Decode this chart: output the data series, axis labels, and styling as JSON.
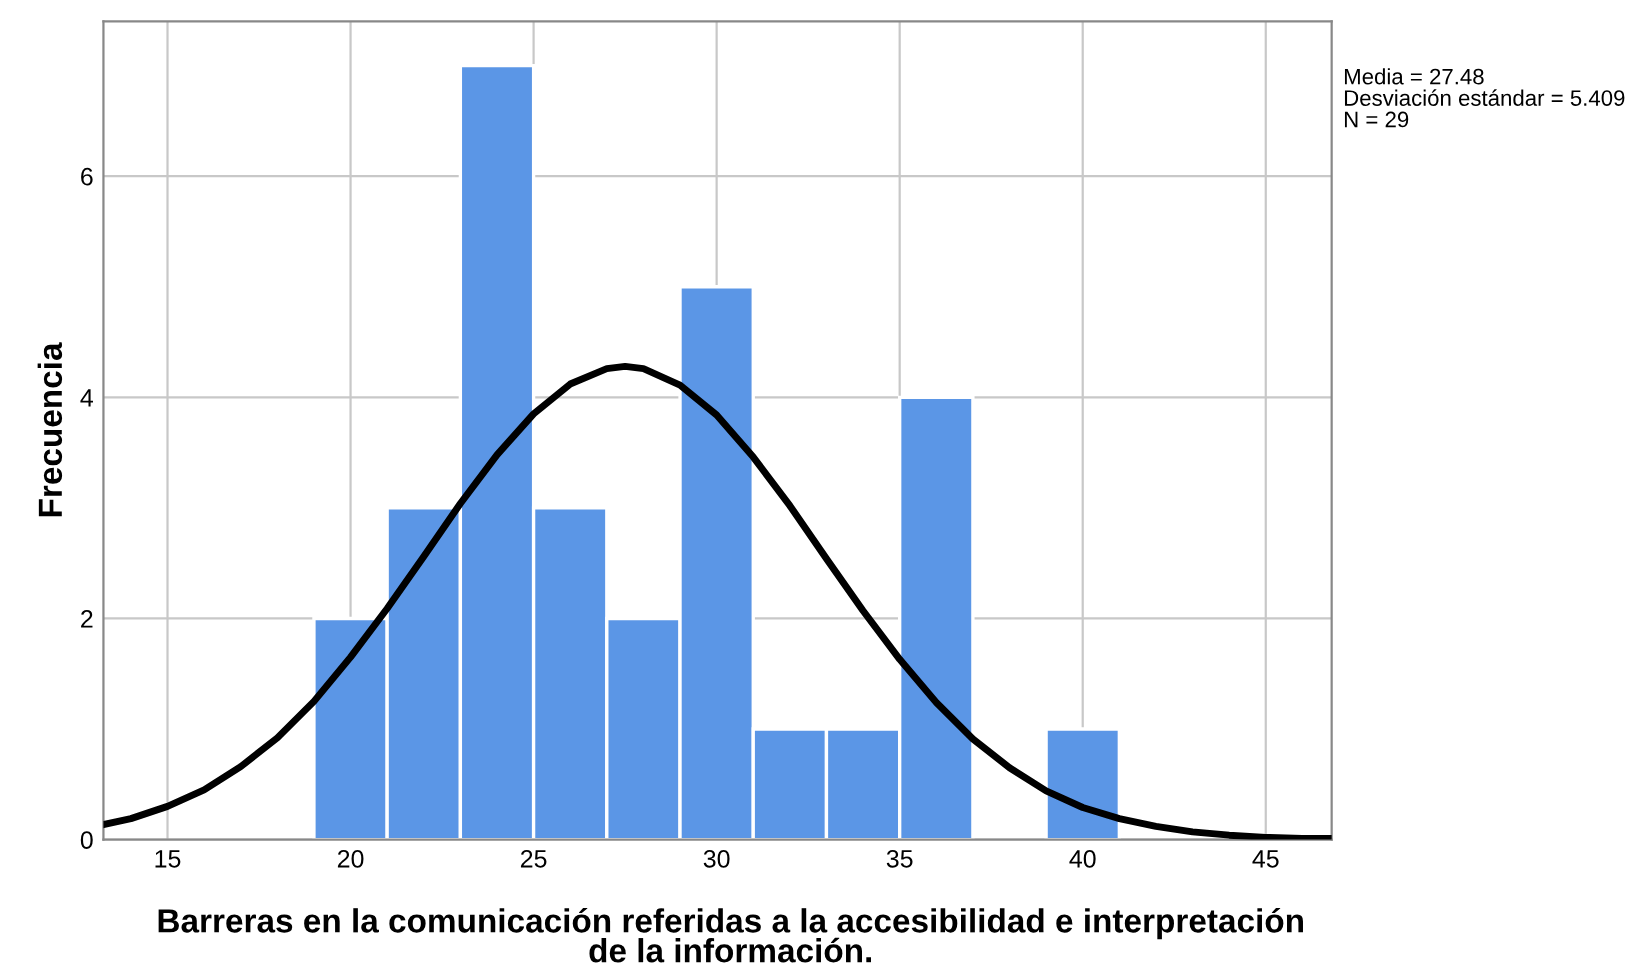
{
  "chart_data": {
    "type": "histogram",
    "xlabel": "Barreras en la comunicación referidas a la accesibilidad e interpretación\nde la información.",
    "ylabel": "Frecuencia",
    "bins": [
      19,
      21,
      23,
      25,
      27,
      29,
      31,
      33,
      35,
      37,
      39,
      41
    ],
    "values": [
      2,
      3,
      7,
      3,
      2,
      5,
      1,
      1,
      4,
      0,
      1
    ],
    "color": "#5b96e6",
    "series": [
      {
        "type": "line",
        "color": "#000000",
        "x": [
          13.3,
          14,
          15,
          16,
          17,
          18,
          19,
          20,
          21,
          22,
          23,
          24,
          25,
          26,
          27,
          27.5,
          28,
          29,
          30,
          31,
          32,
          33,
          34,
          35,
          36,
          37,
          38,
          39,
          40,
          41,
          42,
          43,
          44,
          45,
          46,
          46.8
        ],
        "values": [
          0.14,
          0.19,
          0.3,
          0.45,
          0.66,
          0.92,
          1.25,
          1.65,
          2.09,
          2.56,
          3.04,
          3.48,
          3.85,
          4.12,
          4.26,
          4.28,
          4.26,
          4.11,
          3.84,
          3.46,
          3.02,
          2.54,
          2.07,
          1.63,
          1.24,
          0.91,
          0.65,
          0.44,
          0.29,
          0.19,
          0.12,
          0.07,
          0.04,
          0.02,
          0.01,
          0.01
        ]
      }
    ],
    "xlim": [
      13.25,
      46.8
    ],
    "xticks": [
      15,
      20,
      25,
      30,
      35,
      40,
      45
    ],
    "ylim": [
      0,
      7.4
    ],
    "yticks": [
      0,
      2,
      4,
      6
    ],
    "grid": true,
    "annotations": [
      "Media = 27.48",
      "Desviación estándar = 5.409",
      "N = 29"
    ]
  }
}
